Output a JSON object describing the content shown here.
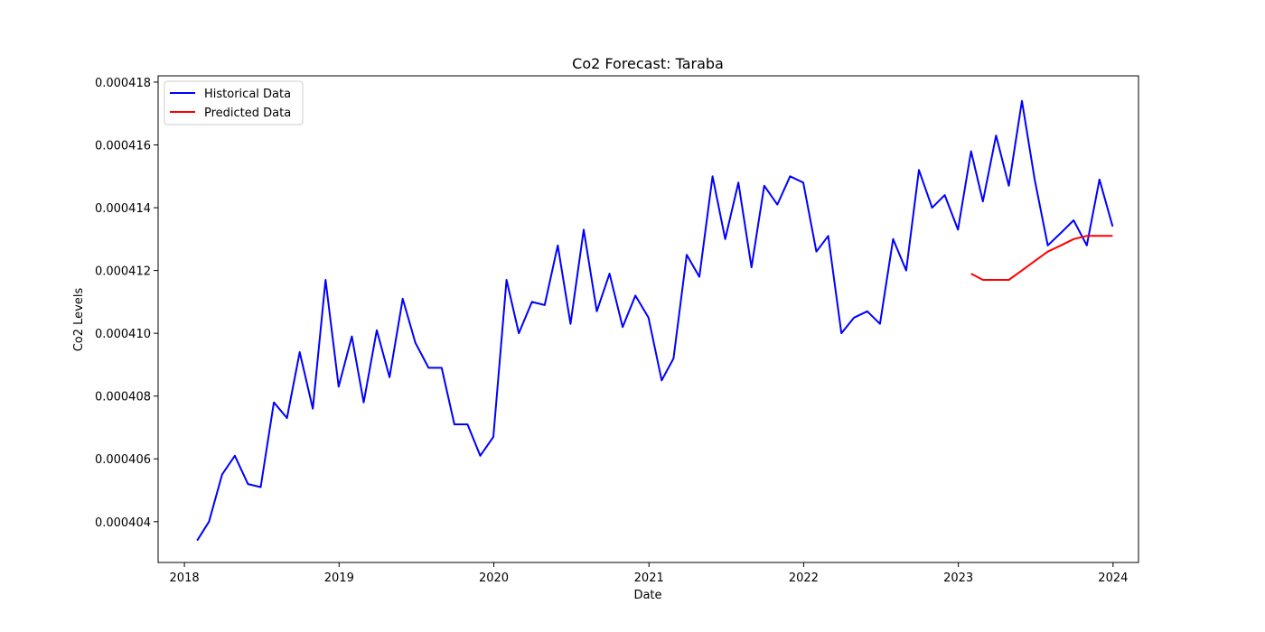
{
  "chart_data": {
    "type": "line",
    "title": "Co2 Forecast: Taraba",
    "xlabel": "Date",
    "ylabel": "Co2 Levels",
    "x_tick_labels": [
      "2018",
      "2019",
      "2020",
      "2021",
      "2022",
      "2023",
      "2024"
    ],
    "y_tick_labels": [
      "0.000404",
      "0.000406",
      "0.000408",
      "0.000410",
      "0.000412",
      "0.000414",
      "0.000416",
      "0.000418"
    ],
    "y_ticks": [
      0.000404,
      0.000406,
      0.000408,
      0.00041,
      0.000412,
      0.000414,
      0.000416,
      0.000418
    ],
    "xlim": [
      "2017-10-31",
      "2024-03-01"
    ],
    "ylim": [
      0.0004027,
      0.0004182
    ],
    "grid": false,
    "legend_position": "top-left",
    "series": [
      {
        "name": "Historical Data",
        "color": "#0000ff",
        "x": [
          "2018-01-31",
          "2018-02-28",
          "2018-03-31",
          "2018-04-30",
          "2018-05-31",
          "2018-06-30",
          "2018-07-31",
          "2018-08-31",
          "2018-09-30",
          "2018-10-31",
          "2018-11-30",
          "2018-12-31",
          "2019-01-31",
          "2019-02-28",
          "2019-03-31",
          "2019-04-30",
          "2019-05-31",
          "2019-06-30",
          "2019-07-31",
          "2019-08-31",
          "2019-09-30",
          "2019-10-31",
          "2019-11-30",
          "2019-12-31",
          "2020-01-31",
          "2020-02-29",
          "2020-03-31",
          "2020-04-30",
          "2020-05-31",
          "2020-06-30",
          "2020-07-31",
          "2020-08-31",
          "2020-09-30",
          "2020-10-31",
          "2020-11-30",
          "2020-12-31",
          "2021-01-31",
          "2021-02-28",
          "2021-03-31",
          "2021-04-30",
          "2021-05-31",
          "2021-06-30",
          "2021-07-31",
          "2021-08-31",
          "2021-09-30",
          "2021-10-31",
          "2021-11-30",
          "2021-12-31",
          "2022-01-31",
          "2022-02-28",
          "2022-03-31",
          "2022-04-30",
          "2022-05-31",
          "2022-06-30",
          "2022-07-31",
          "2022-08-31",
          "2022-09-30",
          "2022-10-31",
          "2022-11-30",
          "2022-12-31",
          "2023-01-31",
          "2023-02-28",
          "2023-03-31",
          "2023-04-30",
          "2023-05-31",
          "2023-06-30",
          "2023-07-31",
          "2023-08-31",
          "2023-09-30",
          "2023-10-31",
          "2023-11-30",
          "2023-12-31"
        ],
        "y": [
          0.0004034,
          0.000404,
          0.0004055,
          0.0004061,
          0.0004052,
          0.0004051,
          0.0004078,
          0.0004073,
          0.0004094,
          0.0004076,
          0.0004117,
          0.0004083,
          0.0004099,
          0.0004078,
          0.0004101,
          0.0004086,
          0.0004111,
          0.0004097,
          0.0004089,
          0.0004089,
          0.0004071,
          0.0004071,
          0.0004061,
          0.0004067,
          0.0004117,
          0.00041,
          0.000411,
          0.0004109,
          0.0004128,
          0.0004103,
          0.0004133,
          0.0004107,
          0.0004119,
          0.0004102,
          0.0004112,
          0.0004105,
          0.0004085,
          0.0004092,
          0.0004125,
          0.0004118,
          0.000415,
          0.000413,
          0.0004148,
          0.0004121,
          0.0004147,
          0.0004141,
          0.000415,
          0.0004148,
          0.0004126,
          0.0004131,
          0.00041,
          0.0004105,
          0.0004107,
          0.0004103,
          0.000413,
          0.000412,
          0.0004152,
          0.000414,
          0.0004144,
          0.0004133,
          0.0004158,
          0.0004142,
          0.0004163,
          0.0004147,
          0.0004174,
          0.0004149,
          0.0004128,
          0.0004132,
          0.0004136,
          0.0004128,
          0.0004149,
          0.0004134
        ]
      },
      {
        "name": "Predicted Data",
        "color": "#ff0000",
        "x": [
          "2023-01-31",
          "2023-02-28",
          "2023-03-31",
          "2023-04-30",
          "2023-05-31",
          "2023-06-30",
          "2023-07-31",
          "2023-08-31",
          "2023-09-30",
          "2023-10-31",
          "2023-11-30",
          "2023-12-31"
        ],
        "y": [
          0.0004119,
          0.0004117,
          0.0004117,
          0.0004117,
          0.000412,
          0.0004123,
          0.0004126,
          0.0004128,
          0.000413,
          0.0004131,
          0.0004131,
          0.0004131
        ]
      }
    ]
  }
}
